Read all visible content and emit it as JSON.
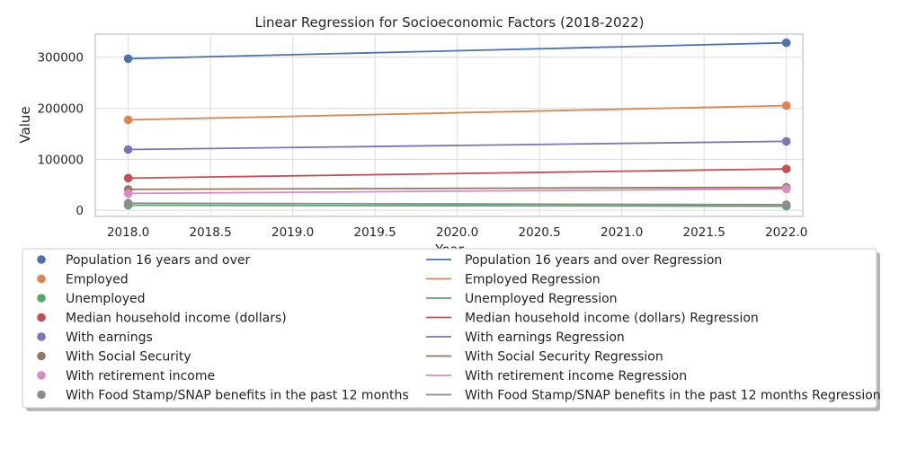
{
  "chart_data": {
    "type": "scatter",
    "title": "Linear Regression for Socioeconomic Factors (2018-2022)",
    "xlabel": "Year",
    "ylabel": "Value",
    "xlim": [
      2017.8,
      2022.1
    ],
    "ylim": [
      -12000,
      345000
    ],
    "x_ticks": [
      2018.0,
      2018.5,
      2019.0,
      2019.5,
      2020.0,
      2020.5,
      2021.0,
      2021.5,
      2022.0
    ],
    "x_tick_labels": [
      "2018.0",
      "2018.5",
      "2019.0",
      "2019.5",
      "2020.0",
      "2020.5",
      "2021.0",
      "2021.5",
      "2022.0"
    ],
    "y_ticks": [
      0,
      100000,
      200000,
      300000
    ],
    "y_tick_labels": [
      "0",
      "100000",
      "200000",
      "300000"
    ],
    "grid": true,
    "legend_placement": "below",
    "series": [
      {
        "name": "Population 16 years and over",
        "regression_name": "Population 16 years and over Regression",
        "color": "#4c72b0",
        "x": [
          2018,
          2022
        ],
        "y": [
          297000,
          328000
        ]
      },
      {
        "name": "Employed",
        "regression_name": "Employed Regression",
        "color": "#dd8452",
        "x": [
          2018,
          2022
        ],
        "y": [
          177000,
          205000
        ]
      },
      {
        "name": "Unemployed",
        "regression_name": "Unemployed Regression",
        "color": "#55a868",
        "x": [
          2018,
          2022
        ],
        "y": [
          10000,
          8000
        ]
      },
      {
        "name": "Median household income (dollars)",
        "regression_name": "Median household income (dollars) Regression",
        "color": "#c44e52",
        "x": [
          2018,
          2022
        ],
        "y": [
          63000,
          81000
        ]
      },
      {
        "name": "With earnings",
        "regression_name": "With earnings Regression",
        "color": "#8172b3",
        "x": [
          2018,
          2022
        ],
        "y": [
          119000,
          135000
        ]
      },
      {
        "name": "With Social Security",
        "regression_name": "With Social Security Regression",
        "color": "#937860",
        "x": [
          2018,
          2022
        ],
        "y": [
          41000,
          45000
        ]
      },
      {
        "name": "With retirement income",
        "regression_name": "With retirement income Regression",
        "color": "#da8bc3",
        "x": [
          2018,
          2022
        ],
        "y": [
          33000,
          42000
        ]
      },
      {
        "name": "With Food Stamp/SNAP benefits in the past 12 months",
        "regression_name": "With Food Stamp/SNAP benefits in the past 12 months Regression",
        "color": "#8c8c8c",
        "x": [
          2018,
          2022
        ],
        "y": [
          14000,
          11000
        ]
      }
    ]
  }
}
